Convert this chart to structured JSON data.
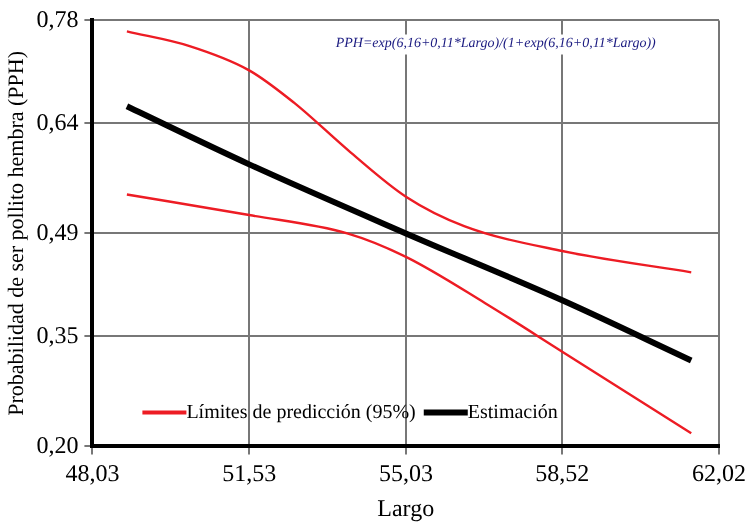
{
  "chart_data": {
    "type": "line",
    "xlabel": "Largo",
    "ylabel": "Probabilidad de ser pollito hembra (PPH)",
    "annotations": [
      "PPH=exp(6,16+0,11*Largo)/(1+exp(6,16+0,11*Largo))"
    ],
    "xlim": [
      48.03,
      62.02
    ],
    "xticks": [
      {
        "value": 48.03,
        "label": "48,03"
      },
      {
        "value": 51.53,
        "label": "51,53"
      },
      {
        "value": 55.03,
        "label": "55,03"
      },
      {
        "value": 58.52,
        "label": "58,52"
      },
      {
        "value": 62.02,
        "label": "62,02"
      }
    ],
    "ylim": [
      0.2,
      0.78
    ],
    "yticks": [
      {
        "value": 0.2,
        "label": "0,20"
      },
      {
        "value": 0.35,
        "label": "0,35"
      },
      {
        "value": 0.49,
        "label": "0,49"
      },
      {
        "value": 0.64,
        "label": "0,64"
      },
      {
        "value": 0.78,
        "label": "0,78"
      }
    ],
    "grid": true,
    "legend": "bottom",
    "marker": "none",
    "line_style": "solid",
    "series": [
      {
        "name": "Límites de predicción (95%)",
        "color": "#ed1c24",
        "x": [
          48.8,
          50.2,
          51.53,
          52.53,
          53.8,
          55.03,
          56.33,
          58.52,
          61.4
        ],
        "values": [
          0.765,
          0.745,
          0.712,
          0.668,
          0.6,
          0.54,
          0.5,
          0.466,
          0.437
        ]
      },
      {
        "name": null,
        "color": "#ed1c24",
        "x": [
          48.8,
          51.53,
          53.72,
          55.03,
          56.8,
          58.52,
          61.4
        ],
        "values": [
          0.543,
          0.515,
          0.49,
          0.458,
          0.395,
          0.329,
          0.218
        ]
      },
      {
        "name": "Estimación",
        "color": "#000000",
        "x": [
          48.8,
          51.53,
          55.03,
          58.52,
          61.4
        ],
        "values": [
          0.663,
          0.584,
          0.49,
          0.399,
          0.317
        ]
      }
    ]
  }
}
